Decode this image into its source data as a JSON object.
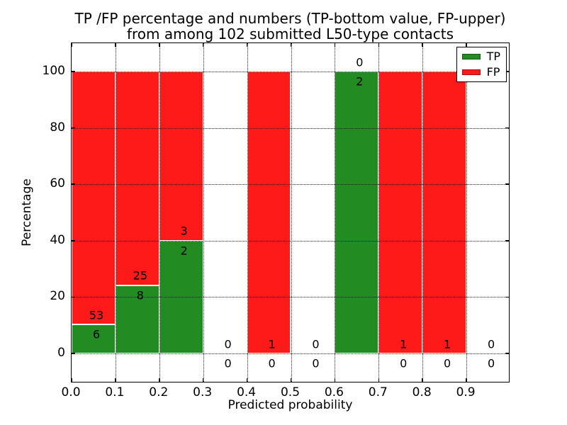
{
  "title": {
    "line1": "TP /FP percentage and numbers (TP-bottom value, FP-upper)",
    "line2": "from among 102 submitted L50-type contacts"
  },
  "axes": {
    "xlabel": "Predicted probability",
    "ylabel": "Percentage",
    "x_tick_labels": [
      "0.0",
      "0.1",
      "0.2",
      "0.3",
      "0.4",
      "0.5",
      "0.6",
      "0.7",
      "0.8",
      "0.9"
    ],
    "y_tick_labels": [
      "0",
      "20",
      "40",
      "60",
      "80",
      "100"
    ],
    "x_range": [
      0.0,
      1.0
    ],
    "grid": "dotted, drawn above bars"
  },
  "legend": {
    "position": "upper-right",
    "items": [
      {
        "label": "TP",
        "color": "#228b22"
      },
      {
        "label": "FP",
        "color": "#ff1a1a"
      }
    ]
  },
  "chart_data": {
    "type": "bar",
    "stacked": true,
    "title": "TP /FP percentage and numbers (TP-bottom value, FP-upper) from among 102 submitted L50-type contacts",
    "xlabel": "Predicted probability",
    "ylabel": "Percentage",
    "total_contacts": 102,
    "bin_width": 0.1,
    "ylim": [
      0,
      100
    ],
    "colors": {
      "tp": "#228b22",
      "fp": "#ff1a1a"
    },
    "bins": [
      {
        "x_start": 0.0,
        "x_end": 0.1,
        "tp_count": 6,
        "fp_count": 53,
        "tp_pct": 10.2,
        "fp_pct": 89.8
      },
      {
        "x_start": 0.1,
        "x_end": 0.2,
        "tp_count": 8,
        "fp_count": 25,
        "tp_pct": 24.2,
        "fp_pct": 75.8
      },
      {
        "x_start": 0.2,
        "x_end": 0.3,
        "tp_count": 2,
        "fp_count": 3,
        "tp_pct": 40.0,
        "fp_pct": 60.0
      },
      {
        "x_start": 0.3,
        "x_end": 0.4,
        "tp_count": 0,
        "fp_count": 0,
        "tp_pct": 0.0,
        "fp_pct": 0.0
      },
      {
        "x_start": 0.4,
        "x_end": 0.5,
        "tp_count": 0,
        "fp_count": 1,
        "tp_pct": 0.0,
        "fp_pct": 100.0
      },
      {
        "x_start": 0.5,
        "x_end": 0.6,
        "tp_count": 0,
        "fp_count": 0,
        "tp_pct": 0.0,
        "fp_pct": 0.0
      },
      {
        "x_start": 0.6,
        "x_end": 0.7,
        "tp_count": 2,
        "fp_count": 0,
        "tp_pct": 100.0,
        "fp_pct": 0.0
      },
      {
        "x_start": 0.7,
        "x_end": 0.8,
        "tp_count": 0,
        "fp_count": 1,
        "tp_pct": 0.0,
        "fp_pct": 100.0
      },
      {
        "x_start": 0.8,
        "x_end": 0.9,
        "tp_count": 0,
        "fp_count": 1,
        "tp_pct": 0.0,
        "fp_pct": 100.0
      },
      {
        "x_start": 0.9,
        "x_end": 1.0,
        "tp_count": 0,
        "fp_count": 0,
        "tp_pct": 0.0,
        "fp_pct": 0.0
      }
    ]
  }
}
